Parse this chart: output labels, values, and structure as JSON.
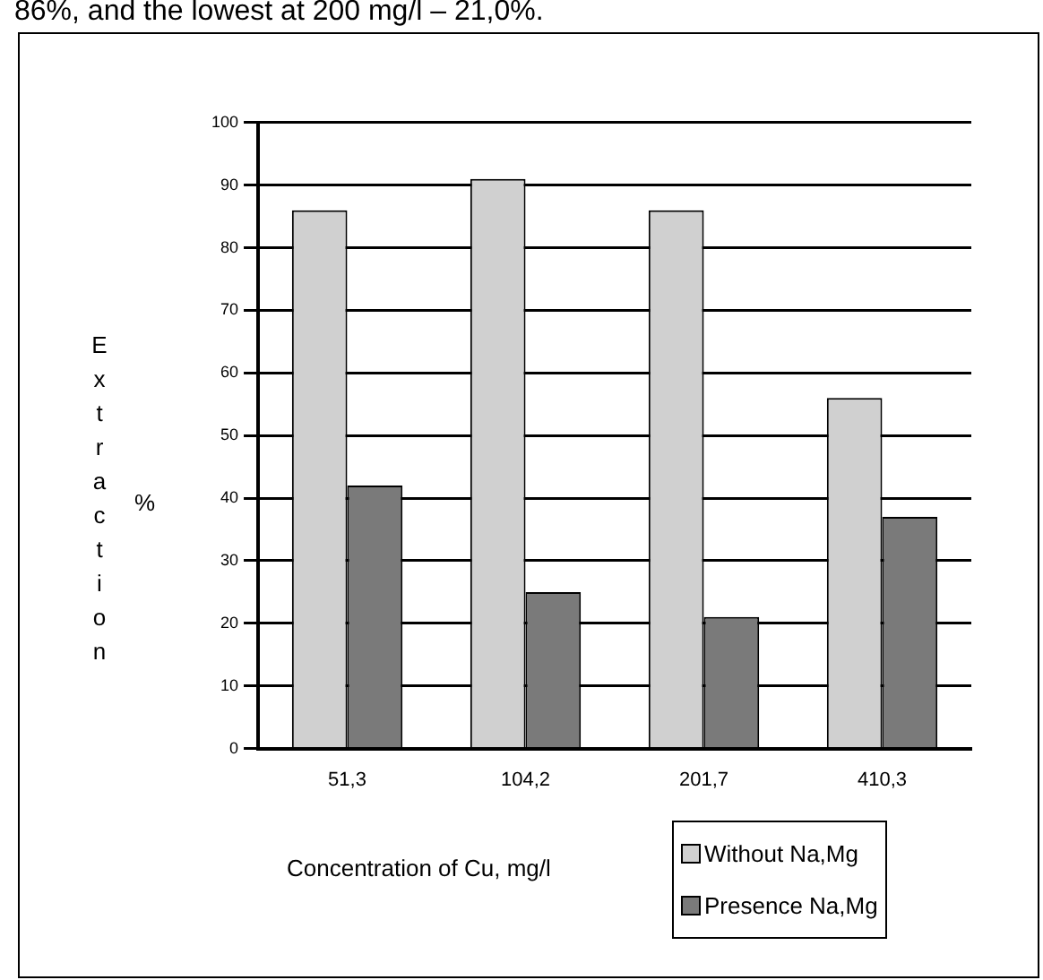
{
  "chart_data": {
    "type": "bar",
    "categories": [
      "51,3",
      "104,2",
      "201,7",
      "410,3"
    ],
    "series": [
      {
        "name": "Without Na,Mg",
        "color": "#d0d0d0",
        "values": [
          86,
          91,
          86,
          56
        ]
      },
      {
        "name": "Presence Na,Mg",
        "color": "#7a7a7a",
        "values": [
          42,
          25,
          21,
          37
        ]
      }
    ],
    "ylim": [
      0,
      100
    ],
    "yticks": [
      0,
      10,
      20,
      30,
      40,
      50,
      60,
      70,
      80,
      90,
      100
    ],
    "grid": "y",
    "ylabel": "Extraction %",
    "xlabel": "Concentration of Cu, mg/l",
    "legend": "bottom right",
    "annotations": [
      "86%, and the lowest at 200 mg/l – 21,0%."
    ]
  }
}
